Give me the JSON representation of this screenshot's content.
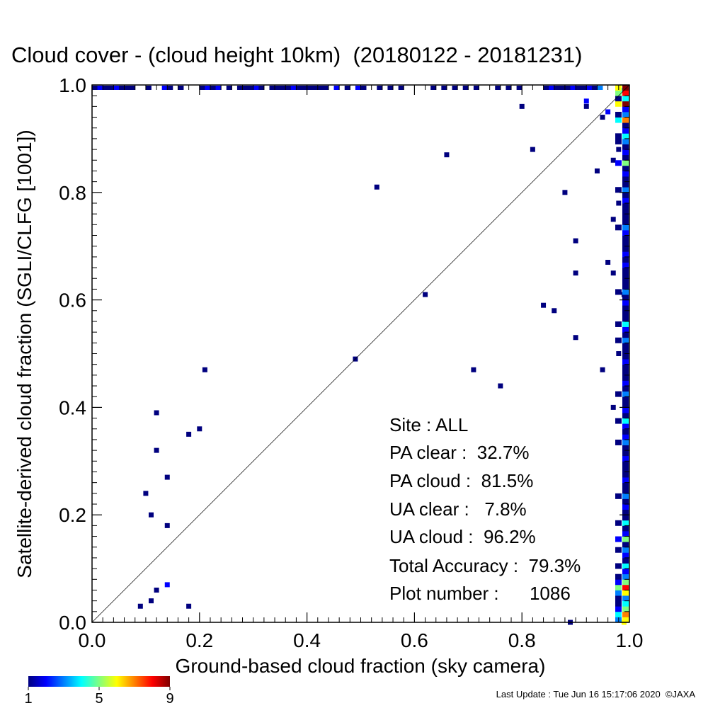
{
  "chart_data": {
    "type": "scatter",
    "title": "Cloud cover - (cloud height 10km)  (20180122 - 20181231)",
    "xlabel": "Ground-based cloud fraction (sky camera)",
    "ylabel": "Satellite-derived cloud fraction (SGLI/CLFG [1001])",
    "xlim": [
      0,
      1
    ],
    "ylim": [
      0,
      1
    ],
    "x_ticks": [
      "0.0",
      "0.2",
      "0.4",
      "0.6",
      "0.8",
      "1.0"
    ],
    "y_ticks": [
      "0.0",
      "0.2",
      "0.4",
      "0.6",
      "0.8",
      "1.0"
    ],
    "grid": false,
    "reference_line": "y = x",
    "points": [
      {
        "x": 0.09,
        "y": 0.03,
        "count": 1
      },
      {
        "x": 0.11,
        "y": 0.04,
        "count": 1
      },
      {
        "x": 0.12,
        "y": 0.06,
        "count": 1
      },
      {
        "x": 0.14,
        "y": 0.07,
        "count": 2
      },
      {
        "x": 0.18,
        "y": 0.03,
        "count": 1
      },
      {
        "x": 0.14,
        "y": 0.18,
        "count": 1
      },
      {
        "x": 0.11,
        "y": 0.2,
        "count": 1
      },
      {
        "x": 0.1,
        "y": 0.24,
        "count": 1
      },
      {
        "x": 0.14,
        "y": 0.27,
        "count": 1
      },
      {
        "x": 0.12,
        "y": 0.32,
        "count": 1
      },
      {
        "x": 0.18,
        "y": 0.35,
        "count": 1
      },
      {
        "x": 0.2,
        "y": 0.36,
        "count": 1
      },
      {
        "x": 0.12,
        "y": 0.39,
        "count": 1
      },
      {
        "x": 0.21,
        "y": 0.47,
        "count": 1
      },
      {
        "x": 0.49,
        "y": 0.49,
        "count": 1
      },
      {
        "x": 0.53,
        "y": 0.81,
        "count": 1
      },
      {
        "x": 0.62,
        "y": 0.61,
        "count": 1
      },
      {
        "x": 0.66,
        "y": 0.87,
        "count": 1
      },
      {
        "x": 0.71,
        "y": 0.47,
        "count": 1
      },
      {
        "x": 0.76,
        "y": 0.44,
        "count": 1
      },
      {
        "x": 0.8,
        "y": 0.96,
        "count": 1
      },
      {
        "x": 0.82,
        "y": 0.88,
        "count": 1
      },
      {
        "x": 0.84,
        "y": 0.59,
        "count": 1
      },
      {
        "x": 0.86,
        "y": 0.58,
        "count": 1
      },
      {
        "x": 0.88,
        "y": 0.8,
        "count": 1
      },
      {
        "x": 0.9,
        "y": 0.71,
        "count": 1
      },
      {
        "x": 0.9,
        "y": 0.65,
        "count": 1
      },
      {
        "x": 0.9,
        "y": 0.53,
        "count": 1
      },
      {
        "x": 0.89,
        "y": 0.0,
        "count": 1
      },
      {
        "x": 0.92,
        "y": 0.97,
        "count": 2
      },
      {
        "x": 0.92,
        "y": 0.96,
        "count": 1
      },
      {
        "x": 0.94,
        "y": 0.84,
        "count": 1
      },
      {
        "x": 0.95,
        "y": 0.94,
        "count": 1
      },
      {
        "x": 0.95,
        "y": 0.47,
        "count": 1
      },
      {
        "x": 0.96,
        "y": 0.67,
        "count": 1
      },
      {
        "x": 0.96,
        "y": 0.95,
        "count": 2
      },
      {
        "x": 0.97,
        "y": 0.86,
        "count": 1
      },
      {
        "x": 0.97,
        "y": 0.75,
        "count": 1
      },
      {
        "x": 0.97,
        "y": 0.65,
        "count": 1
      },
      {
        "x": 0.97,
        "y": 0.4,
        "count": 1
      },
      {
        "x": 0.98,
        "y": 0.78,
        "count": 1
      },
      {
        "x": 0.98,
        "y": 0.5,
        "count": 1
      },
      {
        "x": 0.98,
        "y": 0.88,
        "count": 1
      },
      {
        "x": 0.99,
        "y": 0.61,
        "count": 1
      },
      {
        "x": 0.99,
        "y": 0.99,
        "count": 4
      },
      {
        "x": 0.99,
        "y": 0.0,
        "count": 6
      }
    ],
    "top_row": {
      "y": 1.0,
      "x": [
        0.0,
        0.01,
        0.02,
        0.03,
        0.04,
        0.05,
        0.06,
        0.07,
        0.1,
        0.13,
        0.14,
        0.16,
        0.2,
        0.21,
        0.22,
        0.23,
        0.25,
        0.27,
        0.28,
        0.29,
        0.3,
        0.31,
        0.33,
        0.34,
        0.35,
        0.36,
        0.37,
        0.38,
        0.39,
        0.4,
        0.41,
        0.42,
        0.43,
        0.45,
        0.47,
        0.49,
        0.5,
        0.53,
        0.55,
        0.57,
        0.63,
        0.65,
        0.67,
        0.69,
        0.71,
        0.75,
        0.77,
        0.79,
        0.84,
        0.85,
        0.86,
        0.87,
        0.88,
        0.89,
        0.9,
        0.91,
        0.92,
        0.93,
        0.94
      ],
      "counts": [
        1,
        2,
        1,
        1,
        2,
        1,
        1,
        1,
        1,
        2,
        1,
        1,
        1,
        2,
        1,
        2,
        1,
        1,
        1,
        1,
        2,
        1,
        1,
        1,
        1,
        1,
        2,
        1,
        1,
        1,
        1,
        1,
        1,
        2,
        1,
        2,
        1,
        1,
        1,
        1,
        1,
        1,
        1,
        1,
        1,
        1,
        1,
        1,
        1,
        2,
        1,
        1,
        1,
        2,
        1,
        1,
        2,
        1,
        3
      ]
    },
    "right_column": {
      "x": 1.0,
      "y_from": 0.0,
      "y_to": 1.0,
      "counts": [
        6,
        7,
        5,
        4,
        3,
        6,
        8,
        5,
        3,
        2,
        4,
        1,
        2,
        3,
        1,
        5,
        2,
        1,
        4,
        1,
        1,
        2,
        1,
        3,
        1,
        1,
        2,
        1,
        1,
        1,
        2,
        1,
        1,
        3,
        2,
        1,
        2,
        4,
        1,
        2,
        1,
        1,
        3,
        1,
        2,
        1,
        1,
        1,
        2,
        1,
        1,
        1,
        3,
        1,
        2,
        4,
        1,
        1,
        1,
        2,
        1,
        3,
        1,
        1,
        1,
        1,
        2,
        1,
        2,
        1,
        1,
        1,
        2,
        3,
        1,
        1,
        1,
        1,
        2,
        1,
        3,
        1,
        1,
        2,
        1,
        5,
        1,
        2,
        1,
        3,
        4,
        2,
        1,
        7,
        3,
        2,
        9,
        4,
        8,
        9
      ]
    },
    "colorbar": {
      "min": 1,
      "max": 9,
      "ticks": [
        "1",
        "5",
        "9"
      ],
      "colors": [
        "#00007f",
        "#0000ff",
        "#0080ff",
        "#00ffff",
        "#80ff80",
        "#ffff00",
        "#ff8000",
        "#ff0000",
        "#7f0000"
      ]
    },
    "statistics": [
      {
        "label": "Site : ALL"
      },
      {
        "label": "PA clear :  32.7%"
      },
      {
        "label": "PA cloud :  81.5%"
      },
      {
        "label": "UA clear :   7.8%"
      },
      {
        "label": "UA cloud :  96.2%"
      },
      {
        "label": "Total Accuracy :  79.3%"
      },
      {
        "label": "Plot number :      1086"
      }
    ]
  },
  "footer": {
    "last_update": "Last Update : Tue Jun 16 15:17:06 2020  ©JAXA"
  }
}
